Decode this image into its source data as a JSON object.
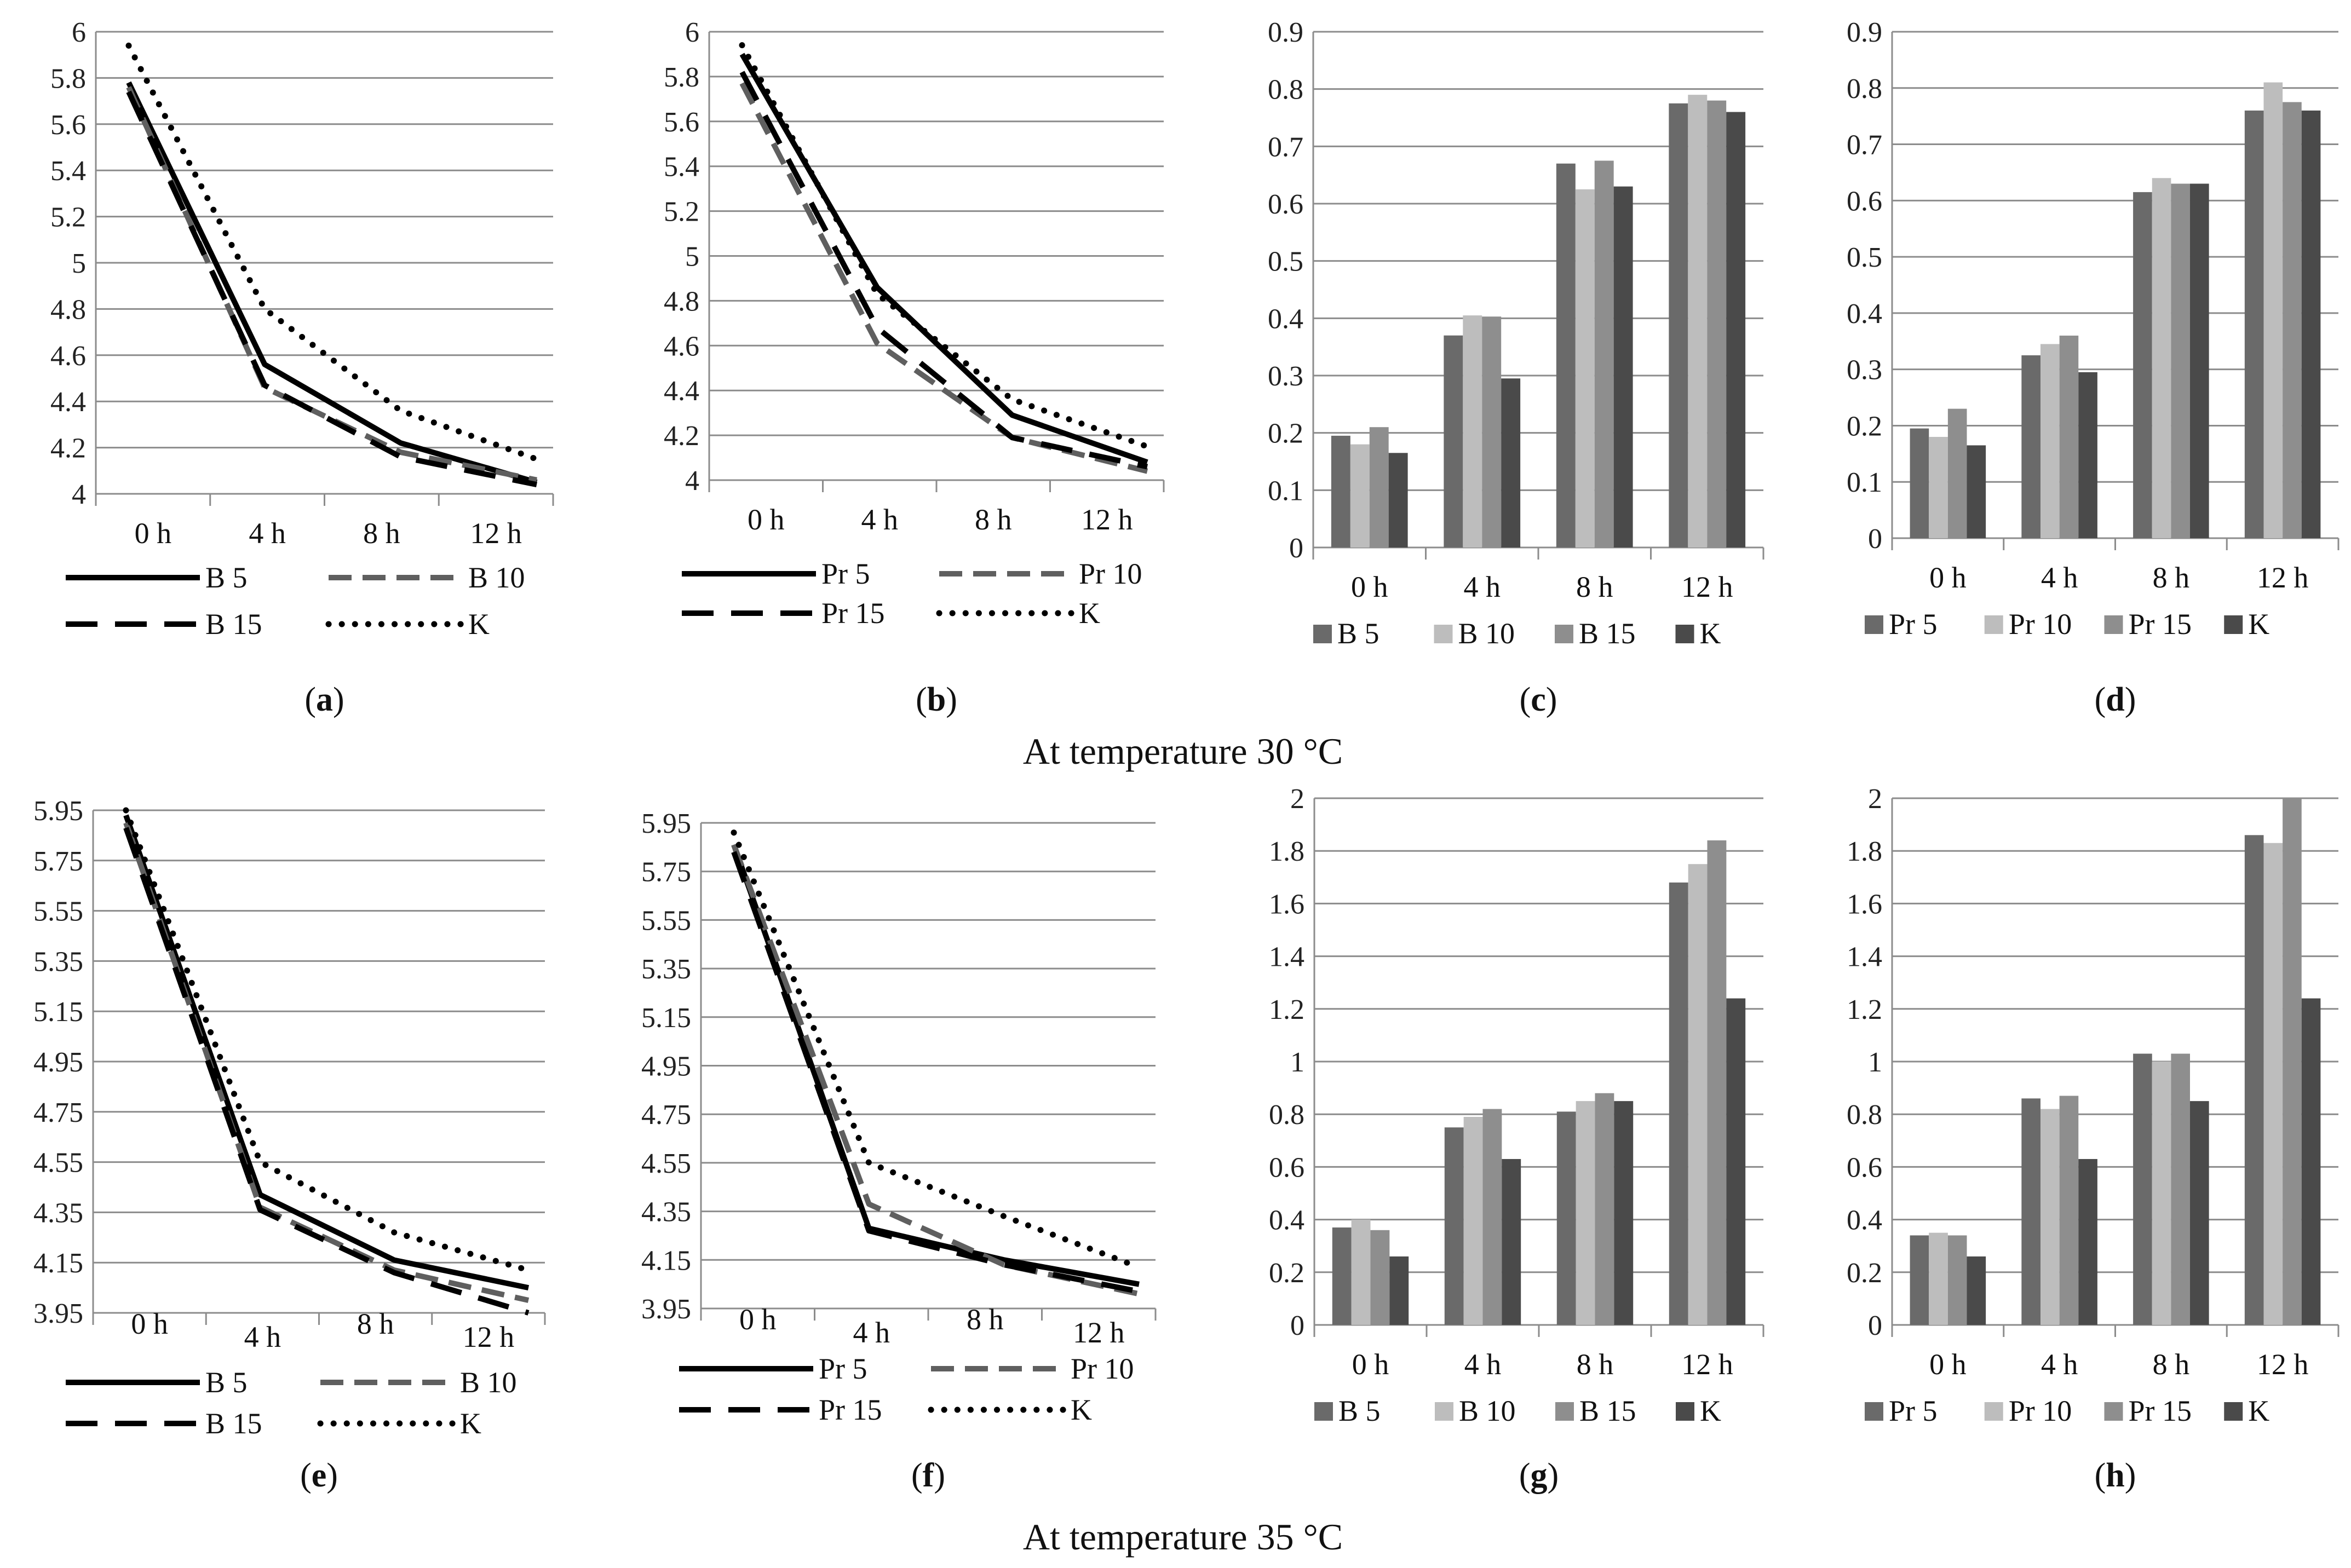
{
  "colors": {
    "grid": "#8c8c8c",
    "axis": "#8c8c8c",
    "line_solid": "#000000",
    "line_grey": "#5f5f5f",
    "bar_1": "#6a6a6a",
    "bar_2": "#bdbdbd",
    "bar_3": "#8e8e8e",
    "bar_4": "#4a4a4a"
  },
  "temperature_labels": [
    "At temperature 30 °C",
    "At temperature 35 °C"
  ],
  "chart_data": [
    {
      "id": "a",
      "caption": "a",
      "type": "line",
      "categories": [
        "0 h",
        "4 h",
        "8 h",
        "12 h"
      ],
      "ylim": [
        4,
        6
      ],
      "yticks": [
        "4",
        "4.2",
        "4.4",
        "4.6",
        "4.8",
        "5",
        "5.2",
        "5.4",
        "5.6",
        "5.8",
        "6"
      ],
      "legend_cols": 2,
      "series": [
        {
          "name": "B 5",
          "style": "solid",
          "values": [
            5.78,
            4.56,
            4.22,
            4.05
          ]
        },
        {
          "name": "B 10",
          "style": "greydash",
          "values": [
            5.76,
            4.46,
            4.18,
            4.06
          ]
        },
        {
          "name": "B 15",
          "style": "dash",
          "values": [
            5.74,
            4.47,
            4.16,
            4.04
          ]
        },
        {
          "name": "K",
          "style": "dot",
          "values": [
            5.94,
            4.8,
            4.36,
            4.15
          ]
        }
      ]
    },
    {
      "id": "b",
      "caption": "b",
      "type": "line",
      "categories": [
        "0 h",
        "4 h",
        "8 h",
        "12 h"
      ],
      "ylim": [
        4,
        6
      ],
      "yticks": [
        "4",
        "4.2",
        "4.4",
        "4.6",
        "4.8",
        "5",
        "5.2",
        "5.4",
        "5.6",
        "5.8",
        "6"
      ],
      "legend_cols": 2,
      "series": [
        {
          "name": "Pr 5",
          "style": "solid",
          "values": [
            5.9,
            4.86,
            4.29,
            4.08
          ]
        },
        {
          "name": "Pr 10",
          "style": "greydash",
          "values": [
            5.77,
            4.61,
            4.19,
            4.04
          ]
        },
        {
          "name": "Pr 15",
          "style": "dash",
          "values": [
            5.82,
            4.68,
            4.19,
            4.06
          ]
        },
        {
          "name": "K",
          "style": "dot",
          "values": [
            5.94,
            4.83,
            4.36,
            4.15
          ]
        }
      ]
    },
    {
      "id": "c",
      "caption": "c",
      "type": "bar",
      "categories": [
        "0 h",
        "4 h",
        "8 h",
        "12 h"
      ],
      "ylim": [
        0,
        0.9
      ],
      "yticks": [
        "0",
        "0.1",
        "0.2",
        "0.3",
        "0.4",
        "0.5",
        "0.6",
        "0.7",
        "0.8",
        "0.9"
      ],
      "series": [
        {
          "name": "B 5",
          "values": [
            0.195,
            0.37,
            0.67,
            0.775
          ]
        },
        {
          "name": "B 10",
          "values": [
            0.18,
            0.405,
            0.625,
            0.79
          ]
        },
        {
          "name": "B 15",
          "values": [
            0.21,
            0.403,
            0.675,
            0.78
          ]
        },
        {
          "name": "K",
          "values": [
            0.165,
            0.295,
            0.63,
            0.76
          ]
        }
      ]
    },
    {
      "id": "d",
      "caption": "d",
      "type": "bar",
      "categories": [
        "0 h",
        "4 h",
        "8 h",
        "12 h"
      ],
      "ylim": [
        0,
        0.9
      ],
      "yticks": [
        "0",
        "0.1",
        "0.2",
        "0.3",
        "0.4",
        "0.5",
        "0.6",
        "0.7",
        "0.8",
        "0.9"
      ],
      "series": [
        {
          "name": "Pr 5",
          "values": [
            0.195,
            0.325,
            0.615,
            0.76
          ]
        },
        {
          "name": "Pr 10",
          "values": [
            0.18,
            0.345,
            0.64,
            0.81
          ]
        },
        {
          "name": "Pr 15",
          "values": [
            0.23,
            0.36,
            0.63,
            0.775
          ]
        },
        {
          "name": "K",
          "values": [
            0.165,
            0.295,
            0.63,
            0.76
          ]
        }
      ]
    },
    {
      "id": "e",
      "caption": "e",
      "type": "line",
      "categories": [
        "0 h",
        "4 h",
        "8 h",
        "12 h"
      ],
      "ylim": [
        3.95,
        5.95
      ],
      "yticks": [
        "3.95",
        "4.15",
        "4.35",
        "4.55",
        "4.75",
        "4.95",
        "5.15",
        "5.35",
        "5.55",
        "5.75",
        "5.95"
      ],
      "legend_cols": 2,
      "series": [
        {
          "name": "B 5",
          "style": "solid",
          "values": [
            5.93,
            4.42,
            4.16,
            4.05
          ]
        },
        {
          "name": "B 10",
          "style": "greydash",
          "values": [
            5.9,
            4.37,
            4.12,
            4.0
          ]
        },
        {
          "name": "B 15",
          "style": "dash",
          "values": [
            5.88,
            4.36,
            4.11,
            3.95
          ]
        },
        {
          "name": "K",
          "style": "dot",
          "values": [
            5.95,
            4.55,
            4.27,
            4.12
          ]
        }
      ]
    },
    {
      "id": "f",
      "caption": "f",
      "type": "line",
      "categories": [
        "0 h",
        "4 h",
        "8 h",
        "12 h"
      ],
      "ylim": [
        3.95,
        5.95
      ],
      "yticks": [
        "3.95",
        "4.15",
        "4.35",
        "4.55",
        "4.75",
        "4.95",
        "5.15",
        "5.35",
        "5.55",
        "5.75",
        "5.95"
      ],
      "legend_cols": 2,
      "series": [
        {
          "name": "Pr 5",
          "style": "solid",
          "values": [
            5.86,
            4.28,
            4.15,
            4.05
          ]
        },
        {
          "name": "Pr 10",
          "style": "greydash",
          "values": [
            5.86,
            4.38,
            4.13,
            4.01
          ]
        },
        {
          "name": "Pr 15",
          "style": "dash",
          "values": [
            5.83,
            4.27,
            4.13,
            4.02
          ]
        },
        {
          "name": "K",
          "style": "dot",
          "values": [
            5.91,
            4.55,
            4.33,
            4.12
          ]
        }
      ]
    },
    {
      "id": "g",
      "caption": "g",
      "type": "bar",
      "categories": [
        "0 h",
        "4 h",
        "8 h",
        "12 h"
      ],
      "ylim": [
        0,
        2
      ],
      "yticks": [
        "0",
        "0.2",
        "0.4",
        "0.6",
        "0.8",
        "1",
        "1.2",
        "1.4",
        "1.6",
        "1.8",
        "2"
      ],
      "series": [
        {
          "name": "B 5",
          "values": [
            0.37,
            0.75,
            0.81,
            1.68
          ]
        },
        {
          "name": "B 10",
          "values": [
            0.4,
            0.79,
            0.85,
            1.75
          ]
        },
        {
          "name": "B 15",
          "values": [
            0.36,
            0.82,
            0.88,
            1.84
          ]
        },
        {
          "name": "K",
          "values": [
            0.26,
            0.63,
            0.85,
            1.24
          ]
        }
      ]
    },
    {
      "id": "h",
      "caption": "h",
      "type": "bar",
      "categories": [
        "0 h",
        "4 h",
        "8 h",
        "12 h"
      ],
      "ylim": [
        0,
        2
      ],
      "yticks": [
        "0",
        "0.2",
        "0.4",
        "0.6",
        "0.8",
        "1",
        "1.2",
        "1.4",
        "1.6",
        "1.8",
        "2"
      ],
      "series": [
        {
          "name": "Pr 5",
          "values": [
            0.34,
            0.86,
            1.03,
            1.86
          ]
        },
        {
          "name": "Pr 10",
          "values": [
            0.35,
            0.82,
            1.0,
            1.83
          ]
        },
        {
          "name": "Pr 15",
          "values": [
            0.34,
            0.87,
            1.03,
            2.0
          ]
        },
        {
          "name": "K",
          "values": [
            0.26,
            0.63,
            0.85,
            1.24
          ]
        }
      ]
    }
  ]
}
